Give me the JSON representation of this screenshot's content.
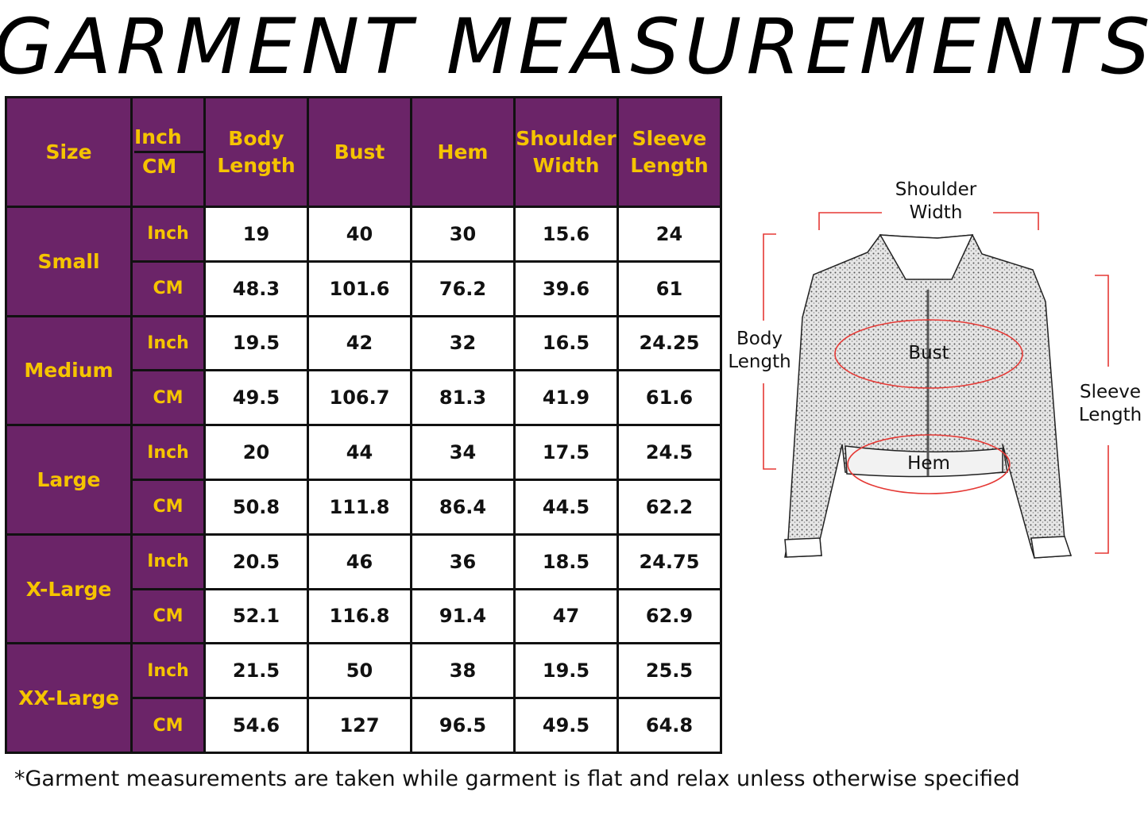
{
  "title": "GARMENT MEASUREMENTS",
  "table": {
    "headers": {
      "size": "Size",
      "unit_inch": "Inch",
      "unit_cm": "CM",
      "columns": [
        [
          "Body",
          "Length"
        ],
        [
          "Bust"
        ],
        [
          "Hem"
        ],
        [
          "Shoulder",
          "Width"
        ],
        [
          "Sleeve",
          "Length"
        ]
      ]
    },
    "rows": [
      {
        "size": "Small",
        "inch": [
          "19",
          "40",
          "30",
          "15.6",
          "24"
        ],
        "cm": [
          "48.3",
          "101.6",
          "76.2",
          "39.6",
          "61"
        ]
      },
      {
        "size": "Medium",
        "inch": [
          "19.5",
          "42",
          "32",
          "16.5",
          "24.25"
        ],
        "cm": [
          "49.5",
          "106.7",
          "81.3",
          "41.9",
          "61.6"
        ]
      },
      {
        "size": "Large",
        "inch": [
          "20",
          "44",
          "34",
          "17.5",
          "24.5"
        ],
        "cm": [
          "50.8",
          "111.8",
          "86.4",
          "44.5",
          "62.2"
        ]
      },
      {
        "size": "X-Large",
        "inch": [
          "20.5",
          "46",
          "36",
          "18.5",
          "24.75"
        ],
        "cm": [
          "52.1",
          "116.8",
          "91.4",
          "47",
          "62.9"
        ]
      },
      {
        "size": "XX-Large",
        "inch": [
          "21.5",
          "50",
          "38",
          "19.5",
          "25.5"
        ],
        "cm": [
          "54.6",
          "127",
          "96.5",
          "49.5",
          "64.8"
        ]
      }
    ],
    "unit_inch": "Inch",
    "unit_cm": "CM"
  },
  "diagram": {
    "shoulder": [
      "Shoulder",
      "Width"
    ],
    "body": [
      "Body",
      "Length"
    ],
    "bust": "Bust",
    "hem": "Hem",
    "sleeve": [
      "Sleeve",
      "Length"
    ]
  },
  "note": "*Garment measurements are taken while garment is flat and relax unless otherwise specified",
  "colors": {
    "header_bg": "#6b2468",
    "header_text": "#f5c400",
    "measure_line": "#e53935"
  }
}
